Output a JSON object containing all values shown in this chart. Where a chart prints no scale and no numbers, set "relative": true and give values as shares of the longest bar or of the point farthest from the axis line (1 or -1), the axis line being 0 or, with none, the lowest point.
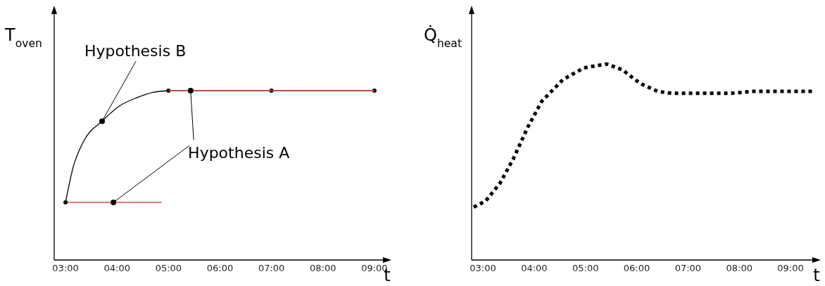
{
  "chart_data": [
    {
      "type": "line",
      "relative": true,
      "ylabel": "T$_{oven}$",
      "xlabel": "t",
      "xlim": [
        2.78,
        9.22
      ],
      "xticks": [
        {
          "value": 3,
          "label": "03:00"
        },
        {
          "value": 4,
          "label": "04:00"
        },
        {
          "value": 5,
          "label": "05:00"
        },
        {
          "value": 6,
          "label": "06:00"
        },
        {
          "value": 7,
          "label": "07:00"
        },
        {
          "value": 8,
          "label": "08:00"
        },
        {
          "value": 9,
          "label": "09:00"
        }
      ],
      "tick_labels": "x",
      "grid": false,
      "legend": false,
      "series": [
        {
          "color": "#000000",
          "marker": "none",
          "x": [
            3,
            3.15,
            3.35,
            3.71,
            4.05,
            4.4,
            4.7,
            5
          ],
          "values": [
            0.34,
            0.55,
            0.7,
            0.82,
            0.91,
            0.96,
            0.99,
            1
          ]
        },
        {
          "color": "#000000",
          "marker": "circle",
          "x": [
            5,
            7,
            9
          ],
          "values": [
            1,
            1,
            1
          ]
        },
        {
          "color": "#e05050",
          "marker": "none",
          "x": [
            3,
            4.87
          ],
          "values": [
            0.34,
            0.34
          ]
        },
        {
          "color": "#e05050",
          "marker": "none",
          "x": [
            5,
            5.43,
            9
          ],
          "values": [
            1,
            1,
            1
          ]
        },
        {
          "type": "scatter",
          "color": "#000000",
          "marker": "circle",
          "x": [
            3
          ],
          "values": [
            0.34
          ]
        }
      ],
      "annotations": [
        {
          "text": "Hypothesis B",
          "x": 3.71,
          "y": 0.82
        },
        {
          "text": "Hypothesis A",
          "x": 3.93,
          "y": 0.34
        }
      ]
    },
    {
      "type": "line",
      "relative": true,
      "ylabel": "Q̇$_{heat}$",
      "xlabel": "t",
      "xlim": [
        2.78,
        9.48
      ],
      "xticks": [
        {
          "value": 3,
          "label": "03:00"
        },
        {
          "value": 4,
          "label": "04:00"
        },
        {
          "value": 5,
          "label": "05:00"
        },
        {
          "value": 6,
          "label": "06:00"
        },
        {
          "value": 7,
          "label": "07:00"
        },
        {
          "value": 8,
          "label": "08:00"
        },
        {
          "value": 9,
          "label": "09:00"
        }
      ],
      "tick_labels": "x",
      "grid": false,
      "legend": false,
      "marker": "none",
      "line_style": "dotted",
      "series": [
        {
          "color": "#000000",
          "x": [
            2.82,
            3.05,
            3.33,
            3.6,
            3.88,
            4.15,
            4.56,
            4.97,
            5.41,
            5.72,
            6.07,
            6.41,
            6.68,
            7.3,
            7.84,
            8.25,
            8.66,
            9.44
          ],
          "values": [
            0.27,
            0.3,
            0.39,
            0.52,
            0.68,
            0.81,
            0.92,
            0.98,
            1,
            0.97,
            0.9,
            0.86,
            0.85,
            0.85,
            0.85,
            0.86,
            0.86,
            0.86
          ]
        }
      ]
    }
  ]
}
